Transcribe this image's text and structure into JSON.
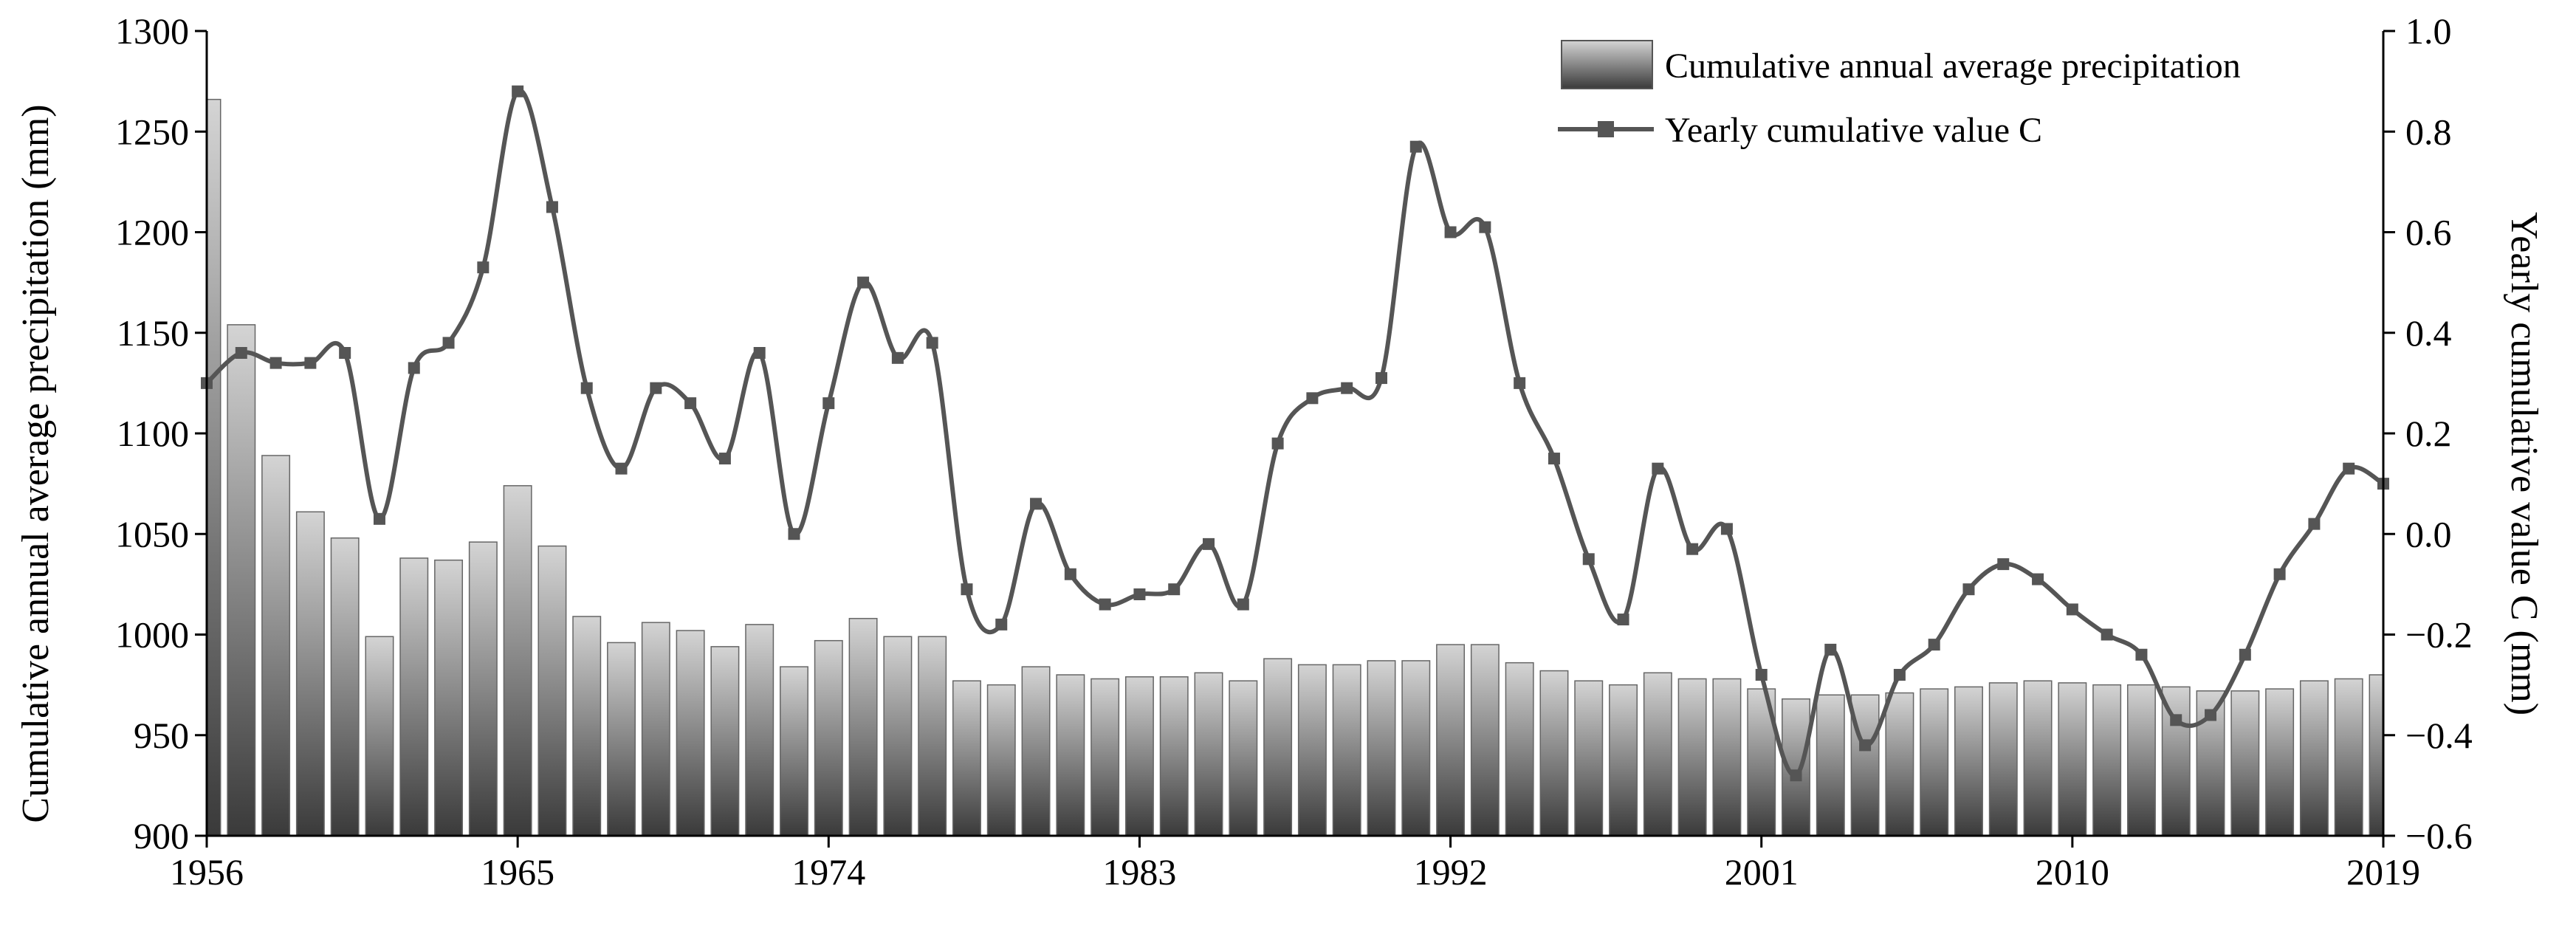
{
  "chart_data": {
    "type": "bar+line",
    "title": "",
    "x_ticks": [
      "1956",
      "1965",
      "1974",
      "1983",
      "1992",
      "2001",
      "2010",
      "2019"
    ],
    "x_range": [
      1956,
      2019
    ],
    "left_axis": {
      "label": "Cumulative annual average precipitation (mm)",
      "range": [
        900,
        1300
      ],
      "ticks": [
        "900",
        "950",
        "1000",
        "1050",
        "1100",
        "1150",
        "1200",
        "1250",
        "1300"
      ]
    },
    "right_axis": {
      "label": "Yearly cumulative value C (mm)",
      "range": [
        -0.6,
        1.0
      ],
      "ticks": [
        "−0.6",
        "−0.4",
        "−0.2",
        "0.0",
        "0.2",
        "0.4",
        "0.6",
        "0.8",
        "1.0"
      ]
    },
    "legend": {
      "position": "top-right",
      "items": [
        "Cumulative annual average precipitation",
        "Yearly cumulative value C"
      ]
    },
    "years": [
      1956,
      1957,
      1958,
      1959,
      1960,
      1961,
      1962,
      1963,
      1964,
      1965,
      1966,
      1967,
      1968,
      1969,
      1970,
      1971,
      1972,
      1973,
      1974,
      1975,
      1976,
      1977,
      1978,
      1979,
      1980,
      1981,
      1982,
      1983,
      1984,
      1985,
      1986,
      1987,
      1988,
      1989,
      1990,
      1991,
      1992,
      1993,
      1994,
      1995,
      1996,
      1997,
      1998,
      1999,
      2000,
      2001,
      2002,
      2003,
      2004,
      2005,
      2006,
      2007,
      2008,
      2009,
      2010,
      2011,
      2012,
      2013,
      2014,
      2015,
      2016,
      2017,
      2018,
      2019
    ],
    "series": [
      {
        "name": "Cumulative annual average precipitation",
        "type": "bar",
        "axis": "left",
        "values": [
          1266,
          1154,
          1089,
          1061,
          1048,
          999,
          1038,
          1037,
          1046,
          1074,
          1044,
          1009,
          996,
          1006,
          1002,
          994,
          1005,
          984,
          997,
          1008,
          999,
          999,
          977,
          975,
          984,
          980,
          978,
          979,
          979,
          981,
          977,
          988,
          985,
          985,
          987,
          987,
          995,
          995,
          986,
          982,
          977,
          975,
          981,
          978,
          978,
          973,
          968,
          970,
          970,
          971,
          973,
          974,
          976,
          977,
          976,
          975,
          975,
          974,
          972,
          972,
          973,
          977,
          978,
          980
        ]
      },
      {
        "name": "Yearly cumulative value C",
        "type": "line",
        "axis": "right",
        "values": [
          0.3,
          0.36,
          0.34,
          0.34,
          0.36,
          0.03,
          0.33,
          0.38,
          0.53,
          0.88,
          0.65,
          0.29,
          0.13,
          0.29,
          0.26,
          0.15,
          0.36,
          0.0,
          0.26,
          0.5,
          0.35,
          0.38,
          -0.11,
          -0.18,
          0.06,
          -0.08,
          -0.14,
          -0.12,
          -0.11,
          -0.02,
          -0.14,
          0.18,
          0.27,
          0.29,
          0.31,
          0.77,
          0.6,
          0.61,
          0.3,
          0.15,
          -0.05,
          -0.17,
          0.13,
          -0.03,
          0.01,
          -0.28,
          -0.48,
          -0.23,
          -0.42,
          -0.28,
          -0.22,
          -0.11,
          -0.06,
          -0.09,
          -0.15,
          -0.2,
          -0.24,
          -0.37,
          -0.36,
          -0.24,
          -0.08,
          0.02,
          0.13,
          0.1
        ]
      }
    ]
  }
}
